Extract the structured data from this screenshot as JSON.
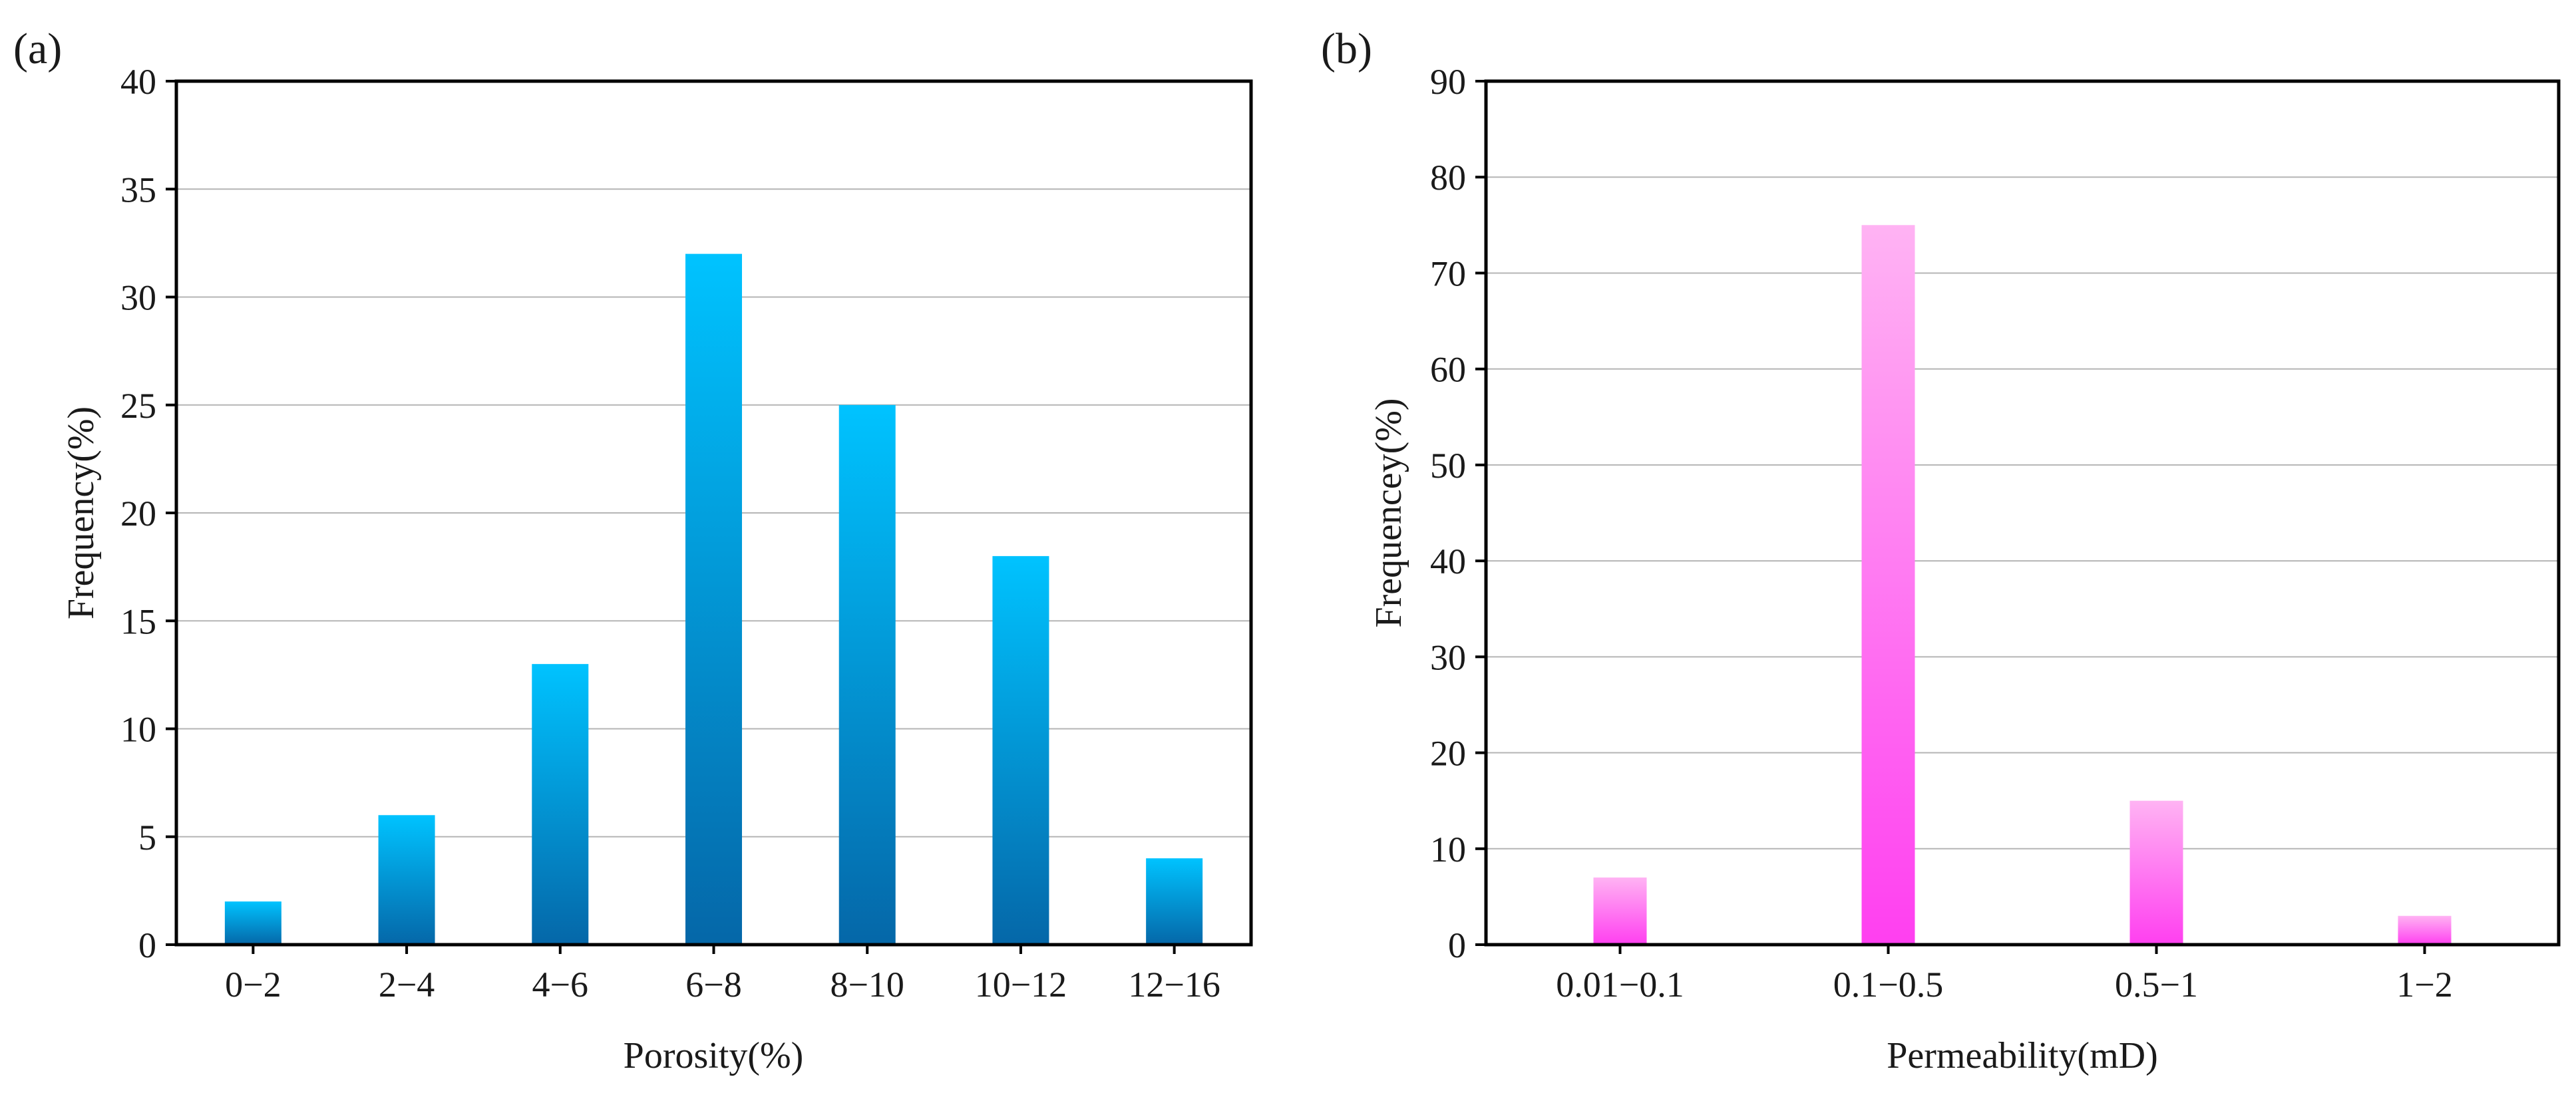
{
  "chart_data": [
    {
      "type": "bar",
      "panel_label": "(a)",
      "xlabel": "Porosity(%)",
      "ylabel": "Frequency(%)",
      "categories": [
        "0−2",
        "2−4",
        "4−6",
        "6−8",
        "8−10",
        "10−12",
        "12−16"
      ],
      "values": [
        2,
        6,
        13,
        32,
        25,
        18,
        4
      ],
      "ylim": [
        0,
        40
      ],
      "yticks": [
        0,
        5,
        10,
        15,
        20,
        25,
        30,
        35,
        40
      ],
      "grid": true,
      "colors": {
        "bar_top": "#00c3ff",
        "bar_bottom": "#0567a8"
      }
    },
    {
      "type": "bar",
      "panel_label": "(b)",
      "xlabel": "Permeability(mD)",
      "ylabel": "Frequencey(%)",
      "categories": [
        "0.01−0.1",
        "0.1−0.5",
        "0.5−1",
        "1−2"
      ],
      "values": [
        7,
        75,
        15,
        3
      ],
      "ylim": [
        0,
        90
      ],
      "yticks": [
        0,
        10,
        20,
        30,
        40,
        50,
        60,
        70,
        80,
        90
      ],
      "grid": true,
      "colors": {
        "bar_top": "#ffb3f3",
        "bar_bottom": "#ff3ff0"
      }
    }
  ]
}
